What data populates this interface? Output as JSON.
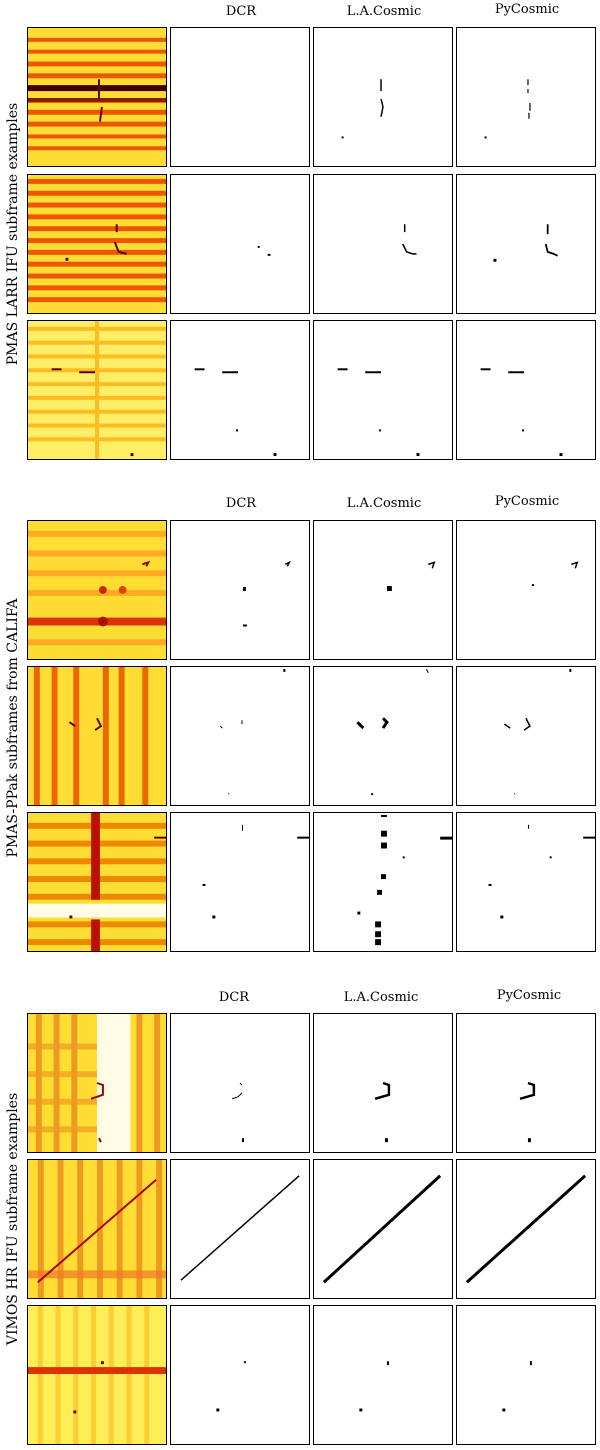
{
  "figure": {
    "columns": [
      "DCR",
      "L.A.Cosmic",
      "PyCosmic"
    ],
    "groups": [
      {
        "side_label": "PMAS LARR IFU subframe examples",
        "rows": 3
      },
      {
        "side_label": "PMAS-PPak subframes from CALIFA",
        "rows": 3
      },
      {
        "side_label": "VIMOS HR IFU subframe examples",
        "rows": 3
      }
    ]
  },
  "colors": {
    "background": "#ffdd33",
    "line": "#dd4400",
    "mask": "#000000"
  }
}
